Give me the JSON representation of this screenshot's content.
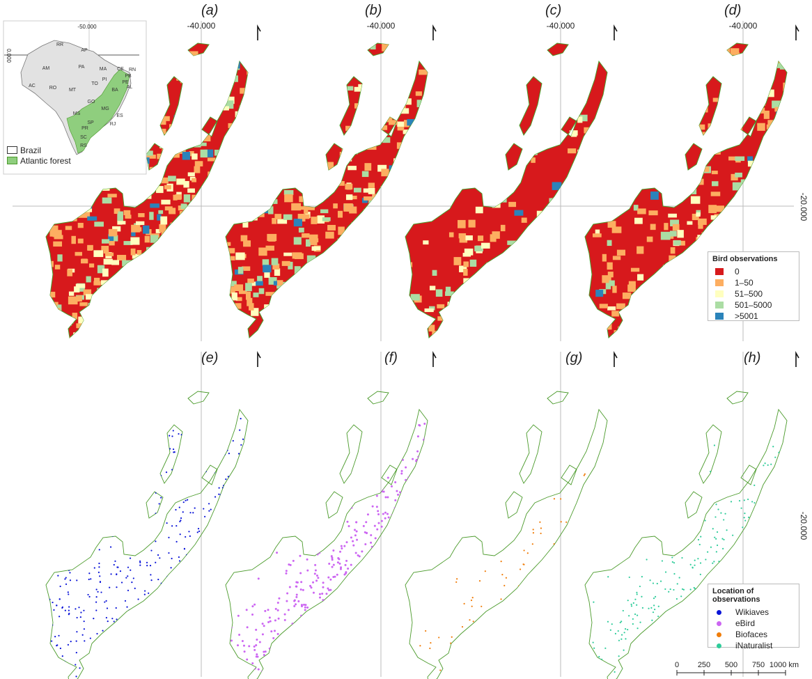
{
  "panels": [
    {
      "id": "a",
      "label": "(a)",
      "kind": "density",
      "lon_label": "-40.000",
      "weights": [
        0.52,
        0.28,
        0.1,
        0.08,
        0.02
      ]
    },
    {
      "id": "b",
      "label": "(b)",
      "kind": "density",
      "lon_label": "-40.000",
      "weights": [
        0.62,
        0.22,
        0.07,
        0.07,
        0.02
      ]
    },
    {
      "id": "c",
      "label": "(c)",
      "kind": "density",
      "lon_label": "-40.000",
      "weights": [
        0.93,
        0.05,
        0.01,
        0.01,
        0.0
      ]
    },
    {
      "id": "d",
      "label": "(d)",
      "kind": "density",
      "lon_label": "-40.000",
      "weights": [
        0.74,
        0.2,
        0.04,
        0.02,
        0.0
      ]
    },
    {
      "id": "e",
      "label": "(e)",
      "kind": "points",
      "source": "Wikiaves"
    },
    {
      "id": "f",
      "label": "(f)",
      "kind": "points",
      "source": "eBird"
    },
    {
      "id": "g",
      "label": "(g)",
      "kind": "points",
      "source": "Biofaces"
    },
    {
      "id": "h",
      "label": "(h)",
      "kind": "points",
      "source": "iNaturalist"
    }
  ],
  "lat_label": "-20.000",
  "density_legend": {
    "title": "Bird observations",
    "items": [
      {
        "label": "0",
        "color": "#d7191c"
      },
      {
        "label": "1‒50",
        "color": "#fdae61"
      },
      {
        "label": "51‒500",
        "color": "#ffffbf"
      },
      {
        "label": "501‒5000",
        "color": "#abdda4"
      },
      {
        "label": ">5001",
        "color": "#2b83ba"
      }
    ]
  },
  "points_legend": {
    "title": "Location of observations",
    "items": [
      {
        "label": "Wikiaves",
        "color": "#0a14d8"
      },
      {
        "label": "eBird",
        "color": "#cc66f2"
      },
      {
        "label": "Biofaces",
        "color": "#f07d0a"
      },
      {
        "label": "iNaturalist",
        "color": "#2ecc9a"
      }
    ]
  },
  "inset": {
    "lon_label": "-50.000",
    "lat_label": "0.000",
    "states": [
      "RR",
      "AP",
      "AM",
      "PA",
      "MA",
      "CE",
      "RN",
      "PB",
      "PE",
      "AL",
      "AC",
      "RO",
      "TO",
      "PI",
      "BA",
      "MT",
      "GO",
      "MG",
      "ES",
      "MS",
      "SP",
      "RJ",
      "PR",
      "SC",
      "RS"
    ],
    "legend": [
      {
        "label": "Brazil",
        "color": "#ffffff"
      },
      {
        "label": "Atlantic forest",
        "color": "#8fce7e"
      }
    ]
  },
  "scale_bar": {
    "ticks": [
      "0",
      "250",
      "500",
      "750",
      "1000 km"
    ]
  },
  "colors": {
    "outline": "#4a9a2a",
    "brazil_fill": "#e2e2e2",
    "forest_fill": "#8fce7e",
    "graticule": "#bbbbbb"
  }
}
